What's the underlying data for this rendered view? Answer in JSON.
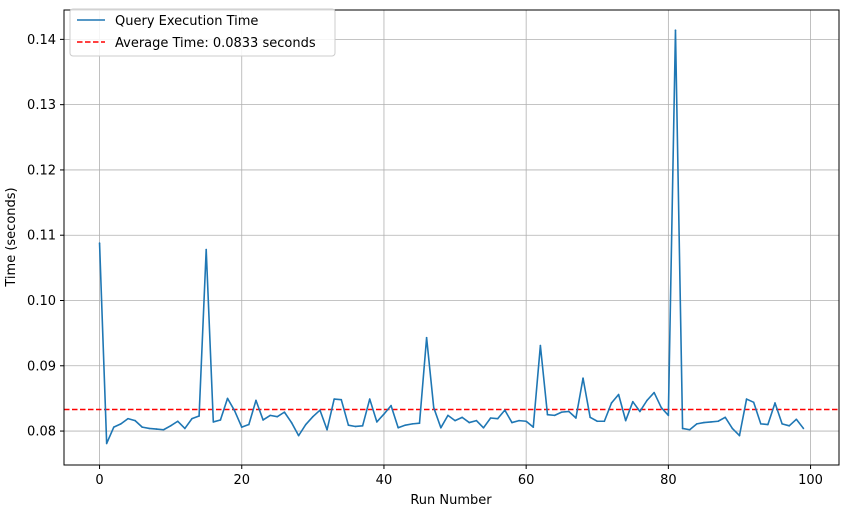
{
  "chart_data": {
    "type": "line",
    "xlabel": "Run Number",
    "ylabel": "Time (seconds)",
    "xlim": [
      -5,
      104
    ],
    "ylim": [
      0.0748,
      0.1445
    ],
    "xticks": [
      0,
      20,
      40,
      60,
      80,
      100
    ],
    "xtick_labels": [
      "0",
      "20",
      "40",
      "60",
      "80",
      "100"
    ],
    "yticks": [
      0.08,
      0.09,
      0.1,
      0.11,
      0.12,
      0.13,
      0.14
    ],
    "ytick_labels": [
      "0.08",
      "0.09",
      "0.10",
      "0.11",
      "0.12",
      "0.13",
      "0.14"
    ],
    "grid": true,
    "legend_position": "top-left",
    "series": [
      {
        "name": "Query Execution Time",
        "color": "#1f77b4",
        "x": [
          0,
          1,
          2,
          3,
          4,
          5,
          6,
          7,
          8,
          9,
          10,
          11,
          12,
          13,
          14,
          15,
          16,
          17,
          18,
          19,
          20,
          21,
          22,
          23,
          24,
          25,
          26,
          27,
          28,
          29,
          30,
          31,
          32,
          33,
          34,
          35,
          36,
          37,
          38,
          39,
          40,
          41,
          42,
          43,
          44,
          45,
          46,
          47,
          48,
          49,
          50,
          51,
          52,
          53,
          54,
          55,
          56,
          57,
          58,
          59,
          60,
          61,
          62,
          63,
          64,
          65,
          66,
          67,
          68,
          69,
          70,
          71,
          72,
          73,
          74,
          75,
          76,
          77,
          78,
          79,
          80,
          81,
          82,
          83,
          84,
          85,
          86,
          87,
          88,
          89,
          90,
          91,
          92,
          93,
          94,
          95,
          96,
          97,
          98,
          99
        ],
        "values": [
          0.1088,
          0.0781,
          0.0806,
          0.0811,
          0.0819,
          0.0816,
          0.0806,
          0.0804,
          0.0803,
          0.0802,
          0.0808,
          0.0815,
          0.0804,
          0.0819,
          0.0823,
          0.1078,
          0.0814,
          0.0817,
          0.085,
          0.0831,
          0.0806,
          0.081,
          0.0847,
          0.0817,
          0.0824,
          0.0822,
          0.0829,
          0.0813,
          0.0793,
          0.081,
          0.0822,
          0.0832,
          0.0802,
          0.0849,
          0.0848,
          0.0809,
          0.0807,
          0.0808,
          0.0849,
          0.0814,
          0.0826,
          0.0839,
          0.0805,
          0.0809,
          0.0811,
          0.0812,
          0.0943,
          0.0836,
          0.0805,
          0.0824,
          0.0816,
          0.0821,
          0.0813,
          0.0816,
          0.0805,
          0.082,
          0.0819,
          0.0832,
          0.0813,
          0.0816,
          0.0815,
          0.0806,
          0.0931,
          0.0825,
          0.0824,
          0.0829,
          0.083,
          0.082,
          0.0881,
          0.0821,
          0.0815,
          0.0815,
          0.0843,
          0.0856,
          0.0816,
          0.0845,
          0.083,
          0.0847,
          0.0859,
          0.0836,
          0.0824,
          0.1414,
          0.0804,
          0.0802,
          0.0811,
          0.0813,
          0.0814,
          0.0815,
          0.0821,
          0.0804,
          0.0793,
          0.0849,
          0.0844,
          0.0811,
          0.081,
          0.0843,
          0.0811,
          0.0808,
          0.0818,
          0.0804
        ]
      }
    ],
    "reference_line": {
      "name": "Average Time: 0.0833 seconds",
      "value": 0.0833,
      "color": "#ff0000",
      "style": "dashed"
    }
  }
}
